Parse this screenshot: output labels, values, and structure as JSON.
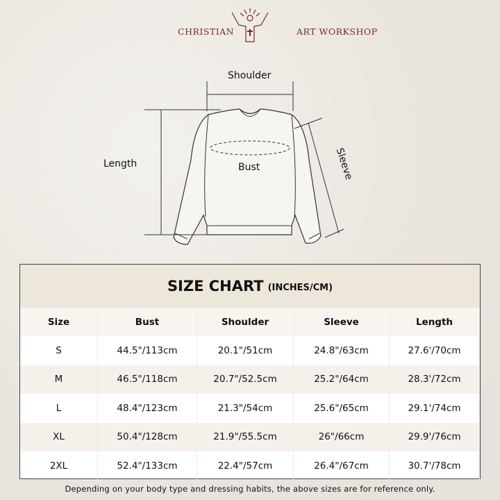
{
  "brand": {
    "left": "CHRISTIAN",
    "right": "ART WORKSHOP",
    "color": "#7a2a22"
  },
  "diagram": {
    "shoulder": "Shoulder",
    "bust": "Bust",
    "length": "Length",
    "sleeve": "Sleeve"
  },
  "table": {
    "title": "SIZE CHART",
    "unit": "(INCHES/CM)",
    "headers": [
      "Size",
      "Bust",
      "Shoulder",
      "Sleeve",
      "Length"
    ],
    "rows": [
      [
        "S",
        "44.5\"/113cm",
        "20.1\"/51cm",
        "24.8\"/63cm",
        "27.6'/70cm"
      ],
      [
        "M",
        "46.5\"/118cm",
        "20.7\"/52.5cm",
        "25.2\"/64cm",
        "28.3'/72cm"
      ],
      [
        "L",
        "48.4\"/123cm",
        "21.3\"/54cm",
        "25.6\"/65cm",
        "29.1'/74cm"
      ],
      [
        "XL",
        "50.4\"/128cm",
        "21.9\"/55.5cm",
        "26\"/66cm",
        "29.9'/76cm"
      ],
      [
        "2XL",
        "52.4\"/133cm",
        "22.4\"/57cm",
        "26.4\"/67cm",
        "30.7'/78cm"
      ]
    ]
  },
  "note": "Depending on your body type and dressing habits, the above sizes are for reference only."
}
